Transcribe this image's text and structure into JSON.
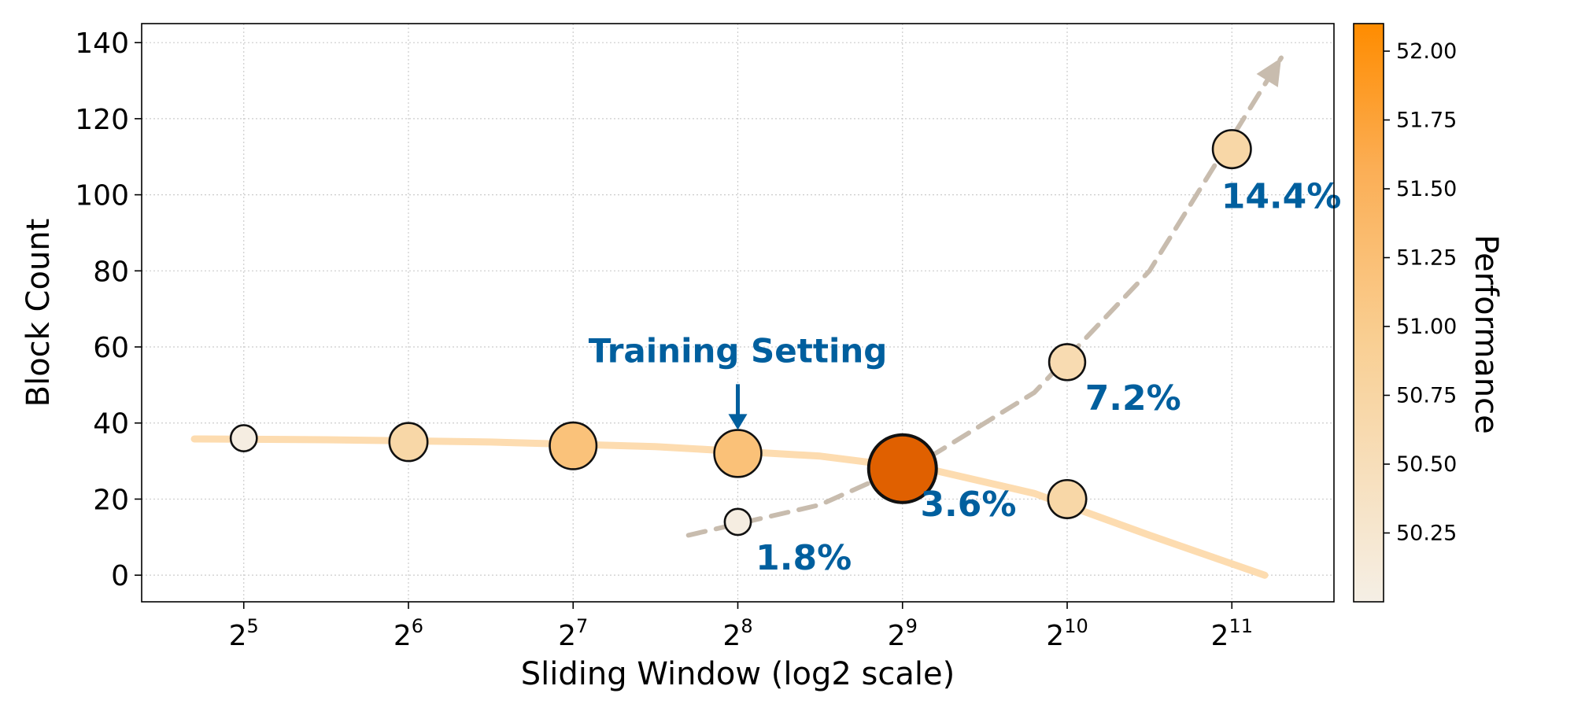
{
  "chart_data": {
    "type": "scatter",
    "xlabel": "Sliding Window (log2 scale)",
    "ylabel": "Block Count",
    "x_scale": "log2",
    "xlim": [
      4.38,
      11.62
    ],
    "ylim": [
      -7,
      145
    ],
    "x_ticks": [
      {
        "base": "2",
        "exp": "5",
        "value": 5
      },
      {
        "base": "2",
        "exp": "6",
        "value": 6
      },
      {
        "base": "2",
        "exp": "7",
        "value": 7
      },
      {
        "base": "2",
        "exp": "8",
        "value": 8
      },
      {
        "base": "2",
        "exp": "9",
        "value": 9
      },
      {
        "base": "2",
        "exp": "10",
        "value": 10
      },
      {
        "base": "2",
        "exp": "11",
        "value": 11
      }
    ],
    "y_ticks": [
      {
        "label": "0",
        "value": 0
      },
      {
        "label": "20",
        "value": 20
      },
      {
        "label": "40",
        "value": 40
      },
      {
        "label": "60",
        "value": 60
      },
      {
        "label": "80",
        "value": 80
      },
      {
        "label": "100",
        "value": 100
      },
      {
        "label": "120",
        "value": 120
      },
      {
        "label": "140",
        "value": 140
      }
    ],
    "grid": true,
    "points": [
      {
        "x": 5,
        "y": 36,
        "performance": 50.05
      },
      {
        "x": 6,
        "y": 35,
        "performance": 50.72
      },
      {
        "x": 7,
        "y": 34,
        "performance": 51.2
      },
      {
        "x": 8,
        "y": 32,
        "performance": 51.22
      },
      {
        "x": 9,
        "y": 28,
        "performance": 52.4
      },
      {
        "x": 10,
        "y": 20,
        "performance": 50.72
      },
      {
        "x": 8,
        "y": 14,
        "performance": 50.05
      },
      {
        "x": 10,
        "y": 56,
        "performance": 50.6
      },
      {
        "x": 11,
        "y": 112,
        "performance": 50.72
      }
    ],
    "trend_solid": {
      "color": "#fddcb0",
      "points": [
        [
          4.7,
          35.8
        ],
        [
          5.5,
          35.6
        ],
        [
          6.5,
          35.0
        ],
        [
          7.5,
          33.8
        ],
        [
          8.5,
          31.3
        ],
        [
          9.2,
          27.5
        ],
        [
          9.8,
          21.5
        ],
        [
          10.5,
          10.5
        ],
        [
          11.2,
          0
        ]
      ]
    },
    "trend_dashed": {
      "color": "#c8bcae",
      "points": [
        [
          7.7,
          10.5
        ],
        [
          8.5,
          18.5
        ],
        [
          9.2,
          32
        ],
        [
          9.8,
          48
        ],
        [
          10.5,
          80
        ],
        [
          11.3,
          136
        ]
      ]
    },
    "annotations": [
      {
        "text": "1.8%",
        "x": 8.4,
        "y": 1.5
      },
      {
        "text": "3.6%",
        "x": 9.4,
        "y": 15.5
      },
      {
        "text": "7.2%",
        "x": 10.4,
        "y": 43.5
      },
      {
        "text": "14.4%",
        "x": 11.3,
        "y": 96.5
      }
    ],
    "callout": {
      "text": "Training Setting",
      "x": 8,
      "y": 56
    },
    "colorbar": {
      "label": "Performance",
      "ticks": [
        "52.00",
        "51.75",
        "51.50",
        "51.25",
        "51.00",
        "50.75",
        "50.50",
        "50.25"
      ],
      "tick_values": [
        52.0,
        51.75,
        51.5,
        51.25,
        51.0,
        50.75,
        50.5,
        50.25
      ],
      "min": 50.0,
      "max": 52.1
    },
    "colors": {
      "annotation": "#005f9e",
      "cmap_low": "#f5efe5",
      "cmap_high": "#ff8c00",
      "best_point": "#e06000"
    }
  }
}
